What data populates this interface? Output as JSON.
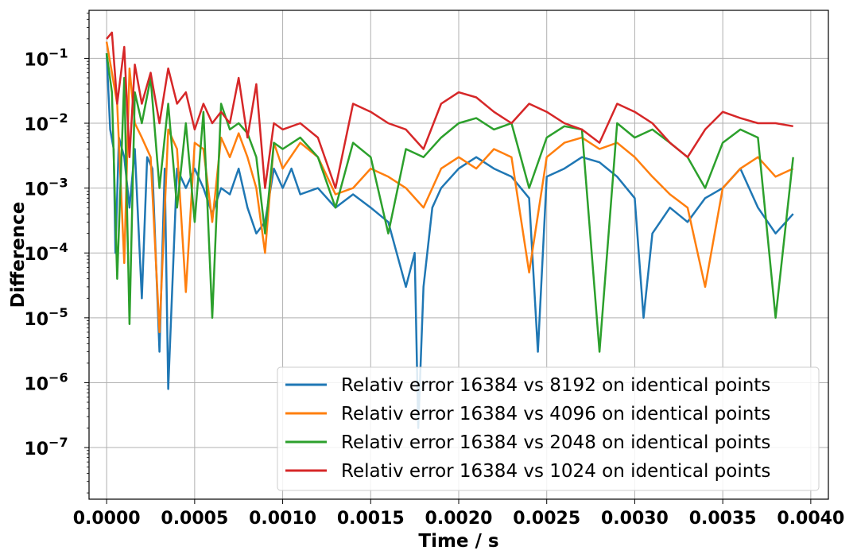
{
  "chart_data": {
    "type": "line",
    "title": "",
    "xlabel": "Time / s",
    "ylabel": "Difference",
    "xscale": "linear",
    "yscale": "log",
    "xlim": [
      -0.0001,
      0.0041
    ],
    "ylim": [
      1.6e-08,
      0.55
    ],
    "grid": true,
    "legend_position": "lower-right",
    "x_tick_labels": [
      "0.0000",
      "0.0005",
      "0.0010",
      "0.0015",
      "0.0020",
      "0.0025",
      "0.0030",
      "0.0035",
      "0.0040"
    ],
    "x_ticks": [
      0.0,
      0.0005,
      0.001,
      0.0015,
      0.002,
      0.0025,
      0.003,
      0.0035,
      0.004
    ],
    "y_ticks": [
      1e-07,
      1e-06,
      1e-05,
      0.0001,
      0.001,
      0.01,
      0.1
    ],
    "y_tick_labels": [
      {
        "base": "10",
        "exp": "−7"
      },
      {
        "base": "10",
        "exp": "−6"
      },
      {
        "base": "10",
        "exp": "−5"
      },
      {
        "base": "10",
        "exp": "−4"
      },
      {
        "base": "10",
        "exp": "−3"
      },
      {
        "base": "10",
        "exp": "−2"
      },
      {
        "base": "10",
        "exp": "−1"
      }
    ],
    "series": [
      {
        "name": "Relativ error 16384 vs 8192 on identical points",
        "color": "#1f77b4",
        "x": [
          0.0,
          2e-05,
          4e-05,
          5e-05,
          7e-05,
          0.0001,
          0.00013,
          0.00016,
          0.0002,
          0.00023,
          0.00026,
          0.0003,
          0.00033,
          0.00035,
          0.0004,
          0.00045,
          0.0005,
          0.00055,
          0.0006,
          0.00065,
          0.0007,
          0.00075,
          0.0008,
          0.00085,
          0.0009,
          0.00095,
          0.001,
          0.00105,
          0.0011,
          0.0012,
          0.0013,
          0.0014,
          0.0015,
          0.0016,
          0.0017,
          0.00175,
          0.00177,
          0.0018,
          0.00185,
          0.0019,
          0.002,
          0.0021,
          0.0022,
          0.0023,
          0.0024,
          0.00245,
          0.0025,
          0.0026,
          0.0027,
          0.0028,
          0.0029,
          0.003,
          0.00305,
          0.0031,
          0.0032,
          0.0033,
          0.0034,
          0.0035,
          0.0036,
          0.0037,
          0.0038,
          0.0039
        ],
        "values": [
          0.12,
          0.008,
          0.004,
          0.0001,
          0.006,
          0.003,
          0.0005,
          0.004,
          2e-05,
          0.003,
          0.002,
          3e-06,
          0.002,
          8e-07,
          0.002,
          0.001,
          0.002,
          0.001,
          0.0004,
          0.001,
          0.0008,
          0.002,
          0.0005,
          0.0002,
          0.0003,
          0.002,
          0.001,
          0.002,
          0.0008,
          0.001,
          0.0005,
          0.0008,
          0.0005,
          0.0003,
          3e-05,
          0.0001,
          2e-07,
          3e-05,
          0.0005,
          0.001,
          0.002,
          0.003,
          0.002,
          0.0015,
          0.0007,
          3e-06,
          0.0015,
          0.002,
          0.003,
          0.0025,
          0.0015,
          0.0007,
          1e-05,
          0.0002,
          0.0005,
          0.0003,
          0.0007,
          0.001,
          0.002,
          0.0005,
          0.0002,
          0.0004
        ]
      },
      {
        "name": "Relativ error 16384 vs 4096 on identical points",
        "color": "#ff7f0e",
        "x": [
          0.0,
          3e-05,
          6e-05,
          0.0001,
          0.00013,
          0.00016,
          0.0002,
          0.00025,
          0.0003,
          0.00035,
          0.0004,
          0.00045,
          0.0005,
          0.00055,
          0.0006,
          0.00065,
          0.0007,
          0.00075,
          0.0008,
          0.00085,
          0.0009,
          0.00095,
          0.001,
          0.0011,
          0.0012,
          0.0013,
          0.0014,
          0.0015,
          0.0016,
          0.0017,
          0.0018,
          0.0019,
          0.002,
          0.0021,
          0.0022,
          0.0023,
          0.0024,
          0.0025,
          0.0026,
          0.0027,
          0.0028,
          0.0029,
          0.003,
          0.0031,
          0.0032,
          0.0033,
          0.0034,
          0.0035,
          0.0036,
          0.0037,
          0.0038,
          0.0039
        ],
        "values": [
          0.18,
          0.06,
          0.02,
          7e-05,
          0.07,
          0.01,
          0.006,
          0.003,
          6e-06,
          0.008,
          0.004,
          2.5e-05,
          0.005,
          0.004,
          0.0003,
          0.006,
          0.003,
          0.007,
          0.003,
          0.001,
          0.0001,
          0.005,
          0.002,
          0.005,
          0.003,
          0.0008,
          0.001,
          0.002,
          0.0015,
          0.001,
          0.0005,
          0.002,
          0.003,
          0.002,
          0.004,
          0.003,
          5e-05,
          0.003,
          0.005,
          0.006,
          0.004,
          0.005,
          0.003,
          0.0015,
          0.0008,
          0.0005,
          3e-05,
          0.001,
          0.002,
          0.003,
          0.0015,
          0.002
        ]
      },
      {
        "name": "Relativ error 16384 vs 2048 on identical points",
        "color": "#2ca02c",
        "x": [
          0.0,
          3e-05,
          6e-05,
          0.0001,
          0.00013,
          0.00016,
          0.0002,
          0.00025,
          0.0003,
          0.00035,
          0.0004,
          0.00045,
          0.0005,
          0.00055,
          0.0006,
          0.00065,
          0.0007,
          0.00075,
          0.0008,
          0.00085,
          0.0009,
          0.00095,
          0.001,
          0.0011,
          0.0012,
          0.0013,
          0.0014,
          0.0015,
          0.0016,
          0.0017,
          0.0018,
          0.0019,
          0.002,
          0.0021,
          0.0022,
          0.0023,
          0.0024,
          0.0025,
          0.0026,
          0.0027,
          0.0028,
          0.0029,
          0.003,
          0.0031,
          0.0032,
          0.0033,
          0.0034,
          0.0035,
          0.0036,
          0.0037,
          0.0038,
          0.0039
        ],
        "values": [
          0.12,
          0.03,
          4e-05,
          0.05,
          8e-06,
          0.03,
          0.01,
          0.05,
          0.001,
          0.02,
          0.0005,
          0.01,
          0.0003,
          0.015,
          1e-05,
          0.02,
          0.008,
          0.01,
          0.007,
          0.003,
          0.0002,
          0.005,
          0.004,
          0.006,
          0.003,
          0.0005,
          0.005,
          0.003,
          0.0002,
          0.004,
          0.003,
          0.006,
          0.01,
          0.012,
          0.008,
          0.01,
          0.001,
          0.006,
          0.009,
          0.008,
          3e-06,
          0.01,
          0.006,
          0.008,
          0.005,
          0.003,
          0.001,
          0.005,
          0.008,
          0.006,
          1e-05,
          0.003
        ]
      },
      {
        "name": "Relativ error 16384 vs 1024 on identical points",
        "color": "#d62728",
        "x": [
          0.0,
          3e-05,
          6e-05,
          0.0001,
          0.00013,
          0.00016,
          0.0002,
          0.00025,
          0.0003,
          0.00035,
          0.0004,
          0.00045,
          0.0005,
          0.00055,
          0.0006,
          0.00065,
          0.0007,
          0.00075,
          0.0008,
          0.00085,
          0.0009,
          0.00095,
          0.001,
          0.0011,
          0.0012,
          0.0013,
          0.0014,
          0.0015,
          0.0016,
          0.0017,
          0.0018,
          0.0019,
          0.002,
          0.0021,
          0.0022,
          0.0023,
          0.0024,
          0.0025,
          0.0026,
          0.0027,
          0.0028,
          0.0029,
          0.003,
          0.0031,
          0.0032,
          0.0033,
          0.0034,
          0.0035,
          0.0036,
          0.0037,
          0.0038,
          0.0039
        ],
        "values": [
          0.2,
          0.25,
          0.02,
          0.15,
          0.003,
          0.08,
          0.02,
          0.06,
          0.01,
          0.07,
          0.02,
          0.03,
          0.008,
          0.02,
          0.01,
          0.015,
          0.01,
          0.05,
          0.006,
          0.04,
          0.001,
          0.01,
          0.008,
          0.01,
          0.006,
          0.001,
          0.02,
          0.015,
          0.01,
          0.008,
          0.004,
          0.02,
          0.03,
          0.025,
          0.015,
          0.01,
          0.02,
          0.015,
          0.01,
          0.008,
          0.005,
          0.02,
          0.015,
          0.01,
          0.005,
          0.003,
          0.008,
          0.015,
          0.012,
          0.01,
          0.01,
          0.009
        ]
      }
    ]
  }
}
